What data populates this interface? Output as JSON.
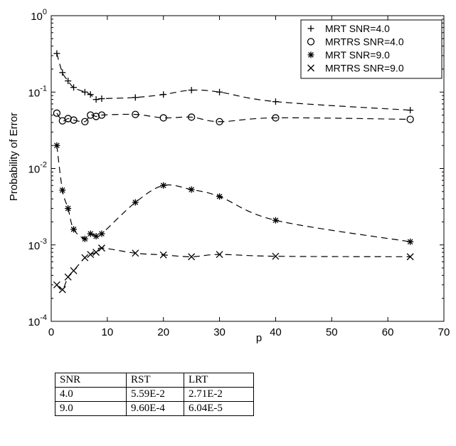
{
  "chart_data": {
    "type": "line",
    "xlabel": "p",
    "ylabel": "Probability of Error",
    "xlim": [
      0,
      70
    ],
    "ylim": [
      0.0001,
      1
    ],
    "yscale": "log",
    "xticks": [
      0,
      10,
      20,
      30,
      40,
      50,
      60,
      70
    ],
    "yticks": [
      {
        "value": 0.0001,
        "base": "10",
        "exp": "-4"
      },
      {
        "value": 0.001,
        "base": "10",
        "exp": "-3"
      },
      {
        "value": 0.01,
        "base": "10",
        "exp": "-2"
      },
      {
        "value": 0.1,
        "base": "10",
        "exp": "-1"
      },
      {
        "value": 1,
        "base": "10",
        "exp": "0"
      }
    ],
    "grid": false,
    "legend_position": "top-right",
    "line_style": "dashed",
    "series": [
      {
        "name": "MRT SNR=4.0",
        "marker": "plus",
        "x": [
          1,
          2,
          3,
          4,
          6,
          7,
          8,
          9,
          15,
          20,
          25,
          30,
          40,
          64
        ],
        "y": [
          0.32,
          0.18,
          0.14,
          0.115,
          0.1,
          0.093,
          0.08,
          0.082,
          0.085,
          0.093,
          0.106,
          0.1,
          0.075,
          0.058
        ]
      },
      {
        "name": "MRTRS SNR=4.0",
        "marker": "circle",
        "x": [
          1,
          2,
          3,
          4,
          6,
          7,
          8,
          9,
          15,
          20,
          25,
          30,
          40,
          64
        ],
        "y": [
          0.053,
          0.042,
          0.045,
          0.043,
          0.041,
          0.05,
          0.048,
          0.05,
          0.051,
          0.046,
          0.047,
          0.041,
          0.046,
          0.044
        ]
      },
      {
        "name": "MRT SNR=9.0",
        "marker": "asterisk",
        "x": [
          1,
          2,
          3,
          4,
          6,
          7,
          8,
          9,
          15,
          20,
          25,
          30,
          40,
          64
        ],
        "y": [
          0.02,
          0.0052,
          0.003,
          0.0016,
          0.0012,
          0.0014,
          0.0013,
          0.0014,
          0.0036,
          0.006,
          0.0053,
          0.0043,
          0.0021,
          0.0011
        ]
      },
      {
        "name": "MRTRS SNR=9.0",
        "marker": "x",
        "x": [
          1,
          2,
          3,
          4,
          6,
          7,
          8,
          9,
          15,
          20,
          25,
          30,
          40,
          64
        ],
        "y": [
          0.0003,
          0.00026,
          0.00038,
          0.00046,
          0.00068,
          0.00075,
          0.0008,
          0.00091,
          0.00078,
          0.00074,
          0.0007,
          0.00075,
          0.00071,
          0.0007
        ]
      }
    ]
  },
  "table": {
    "headers": [
      "SNR",
      "RST",
      "LRT"
    ],
    "rows": [
      [
        "4.0",
        "5.59E-2",
        "2.71E-2"
      ],
      [
        "9.0",
        "9.60E-4",
        "6.04E-5"
      ]
    ]
  }
}
